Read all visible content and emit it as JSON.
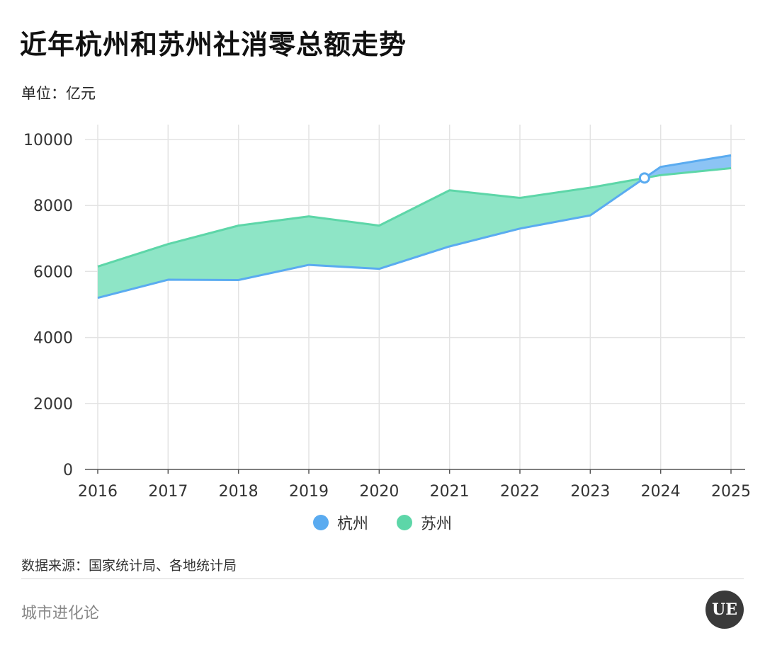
{
  "title": "近年杭州和苏州社消零总额走势",
  "unit_label": "单位：亿元",
  "source": "数据来源：国家统计局、各地统计局",
  "brand": "城市进化论",
  "logo_text": "UE",
  "colors": {
    "hangzhou": "#5aabf0",
    "suzhou": "#5dd6a8",
    "fill_suzhou_ahead": "#8ee5c6",
    "fill_hangzhou_ahead": "#8cc4f5",
    "grid": "#e3e3e3",
    "axis": "#555555"
  },
  "chart_data": {
    "type": "area",
    "title": "近年杭州和苏州社消零总额走势",
    "ylabel": "单位：亿元",
    "categories": [
      "2016",
      "2017",
      "2018",
      "2019",
      "2020",
      "2021",
      "2022",
      "2023",
      "2024",
      "2025"
    ],
    "ylim": [
      0,
      10000
    ],
    "yticks": [
      0,
      2000,
      4000,
      6000,
      8000,
      10000
    ],
    "grid": true,
    "legend_position": "bottom",
    "series": [
      {
        "name": "杭州",
        "values": [
          5200,
          5750,
          5740,
          6200,
          6080,
          6760,
          7300,
          7700,
          9170,
          9520
        ]
      },
      {
        "name": "苏州",
        "values": [
          6150,
          6830,
          7390,
          7670,
          7390,
          8460,
          8230,
          8540,
          8920,
          9130
        ]
      }
    ],
    "annotations": [
      {
        "type": "crossover-marker",
        "x": "2023-2024",
        "y": 8840
      }
    ]
  }
}
